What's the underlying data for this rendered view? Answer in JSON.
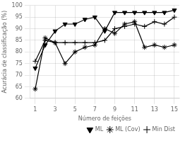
{
  "chart_data": {
    "type": "line",
    "x": [
      1,
      2,
      3,
      4,
      5,
      6,
      7,
      8,
      9,
      10,
      11,
      12,
      13,
      14,
      15
    ],
    "series": [
      {
        "name": "ML",
        "color": "black",
        "marker": "triangle_down",
        "values": [
          73,
          83,
          89,
          92,
          92,
          94,
          95,
          89,
          97,
          97,
          97,
          97,
          97,
          97,
          98
        ]
      },
      {
        "name": "ML (Cov)",
        "color": "black",
        "marker": "star",
        "values": [
          64,
          86,
          84,
          75,
          80,
          82,
          83,
          90,
          88,
          92,
          93,
          82,
          83,
          82,
          83
        ]
      },
      {
        "name": "Min Dist",
        "color": "black",
        "marker": "plus",
        "values": [
          76,
          85,
          84,
          84,
          84,
          84,
          84,
          85,
          90,
          91,
          92,
          91,
          93,
          92,
          95
        ]
      }
    ],
    "xlabel": "Número de feições",
    "ylabel": "Acurácia de classificação (%)",
    "xlim": [
      0.5,
      15.5
    ],
    "ylim": [
      60,
      100
    ],
    "xticks": [
      1,
      3,
      5,
      7,
      9,
      11,
      13,
      15
    ],
    "yticks": [
      60,
      65,
      70,
      75,
      80,
      85,
      90,
      95,
      100
    ],
    "grid": true,
    "legend": "lower right"
  }
}
